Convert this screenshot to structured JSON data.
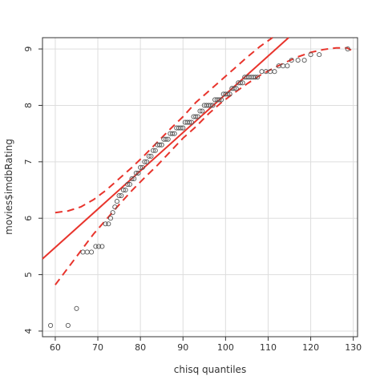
{
  "chart_data": {
    "type": "scatter",
    "title": "",
    "xlabel": "chisq quantiles",
    "ylabel": "movies$imdbRating",
    "xlim": [
      57,
      131
    ],
    "ylim": [
      3.9,
      9.2
    ],
    "grid": true,
    "x_ticks": [
      60,
      70,
      80,
      90,
      100,
      110,
      120,
      130
    ],
    "y_ticks": [
      4,
      5,
      6,
      7,
      8,
      9
    ],
    "colors": {
      "points": "#555555",
      "reference_line": "#e8342c",
      "envelope": "#e8342c",
      "grid": "#dddddd",
      "frame": "#333333"
    },
    "points": {
      "name": "",
      "x": [
        58.9,
        63.0,
        65.0,
        66.5,
        67.5,
        68.5,
        69.5,
        70.2,
        71.0,
        71.8,
        72.5,
        73.0,
        73.5,
        74.0,
        74.5,
        75.0,
        75.5,
        76.0,
        76.5,
        77.0,
        77.5,
        78.0,
        78.5,
        79.0,
        79.5,
        80.0,
        80.5,
        81.0,
        81.5,
        82.0,
        82.5,
        83.0,
        83.5,
        84.0,
        84.5,
        85.0,
        85.5,
        86.0,
        86.5,
        87.0,
        87.5,
        88.0,
        88.5,
        89.0,
        89.5,
        90.0,
        90.5,
        91.0,
        91.5,
        92.0,
        92.5,
        93.0,
        93.5,
        94.0,
        94.5,
        95.0,
        95.5,
        96.0,
        96.5,
        97.0,
        97.5,
        98.0,
        98.5,
        99.0,
        99.5,
        100.0,
        100.5,
        101.0,
        101.5,
        102.0,
        102.5,
        103.0,
        103.5,
        104.0,
        104.5,
        105.0,
        105.5,
        106.0,
        106.5,
        107.0,
        107.5,
        108.5,
        109.5,
        110.5,
        111.5,
        112.5,
        113.5,
        114.5,
        115.5,
        117.0,
        118.5,
        120.0,
        122.0,
        128.7
      ],
      "y": [
        4.1,
        4.1,
        4.4,
        5.4,
        5.4,
        5.4,
        5.5,
        5.5,
        5.5,
        5.9,
        5.9,
        6.0,
        6.1,
        6.2,
        6.3,
        6.4,
        6.4,
        6.5,
        6.5,
        6.6,
        6.6,
        6.7,
        6.7,
        6.8,
        6.8,
        6.9,
        6.9,
        7.0,
        7.0,
        7.1,
        7.1,
        7.2,
        7.2,
        7.3,
        7.3,
        7.3,
        7.4,
        7.4,
        7.4,
        7.5,
        7.5,
        7.5,
        7.6,
        7.6,
        7.6,
        7.6,
        7.7,
        7.7,
        7.7,
        7.7,
        7.8,
        7.8,
        7.8,
        7.9,
        7.9,
        8.0,
        8.0,
        8.0,
        8.0,
        8.0,
        8.1,
        8.1,
        8.1,
        8.1,
        8.2,
        8.2,
        8.2,
        8.2,
        8.3,
        8.3,
        8.3,
        8.4,
        8.4,
        8.4,
        8.5,
        8.5,
        8.5,
        8.5,
        8.5,
        8.5,
        8.5,
        8.6,
        8.6,
        8.6,
        8.6,
        8.7,
        8.7,
        8.7,
        8.8,
        8.8,
        8.8,
        8.9,
        8.9,
        9.0
      ]
    },
    "reference_line": {
      "x": [
        57,
        114.8
      ],
      "y": [
        5.28,
        9.2
      ]
    },
    "envelope_upper": {
      "x": [
        60,
        63,
        66,
        69,
        72,
        75,
        78,
        81,
        84,
        87,
        90,
        93,
        96,
        99,
        102,
        105,
        108,
        111
      ],
      "y": [
        6.1,
        6.13,
        6.2,
        6.33,
        6.5,
        6.7,
        6.9,
        7.12,
        7.35,
        7.58,
        7.8,
        8.05,
        8.25,
        8.45,
        8.65,
        8.85,
        9.04,
        9.2
      ]
    },
    "envelope_lower": {
      "x": [
        60,
        63,
        66,
        69,
        72,
        75,
        78,
        81,
        84,
        87,
        90,
        93,
        96,
        99,
        102,
        105,
        108,
        111,
        114,
        117,
        120,
        123,
        126,
        128.5,
        129.5
      ],
      "y": [
        4.82,
        5.12,
        5.42,
        5.72,
        5.98,
        6.24,
        6.49,
        6.72,
        6.94,
        7.18,
        7.42,
        7.62,
        7.85,
        8.05,
        8.22,
        8.38,
        8.53,
        8.65,
        8.76,
        8.86,
        8.94,
        8.99,
        9.02,
        9.02,
        8.98
      ]
    }
  }
}
